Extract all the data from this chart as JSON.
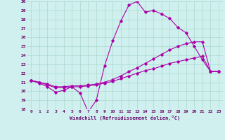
{
  "xlabel": "Windchill (Refroidissement éolien,°C)",
  "xlim": [
    -0.5,
    23.5
  ],
  "ylim": [
    18,
    30
  ],
  "yticks": [
    18,
    19,
    20,
    21,
    22,
    23,
    24,
    25,
    26,
    27,
    28,
    29,
    30
  ],
  "xticks": [
    0,
    1,
    2,
    3,
    4,
    5,
    6,
    7,
    8,
    9,
    10,
    11,
    12,
    13,
    14,
    15,
    16,
    17,
    18,
    19,
    20,
    21,
    22,
    23
  ],
  "bg_color": "#cff0ee",
  "grid_color": "#aad8cc",
  "line_color": "#aa00aa",
  "line1_x": [
    0,
    1,
    2,
    3,
    4,
    5,
    6,
    7,
    8,
    9,
    10,
    11,
    12,
    13,
    14,
    15,
    16,
    17,
    18,
    19,
    20,
    21,
    22,
    23
  ],
  "line1_y": [
    21.2,
    20.9,
    20.5,
    19.9,
    20.1,
    20.5,
    19.8,
    17.7,
    19.0,
    22.8,
    25.6,
    27.8,
    29.6,
    30.0,
    28.8,
    29.0,
    28.6,
    28.1,
    27.1,
    26.5,
    25.0,
    23.5,
    22.2,
    22.2
  ],
  "line2_x": [
    0,
    1,
    2,
    3,
    4,
    5,
    6,
    7,
    8,
    9,
    10,
    11,
    12,
    13,
    14,
    15,
    16,
    17,
    18,
    19,
    20,
    21,
    22,
    23
  ],
  "line2_y": [
    21.2,
    21.0,
    20.8,
    20.5,
    20.5,
    20.6,
    20.6,
    20.7,
    20.8,
    21.0,
    21.3,
    21.7,
    22.2,
    22.6,
    23.1,
    23.6,
    24.1,
    24.6,
    25.0,
    25.3,
    25.5,
    25.5,
    22.2,
    22.2
  ],
  "line3_x": [
    0,
    1,
    2,
    3,
    4,
    5,
    6,
    7,
    8,
    9,
    10,
    11,
    12,
    13,
    14,
    15,
    16,
    17,
    18,
    19,
    20,
    21,
    22,
    23
  ],
  "line3_y": [
    21.2,
    21.0,
    20.7,
    20.4,
    20.4,
    20.5,
    20.5,
    20.6,
    20.7,
    20.9,
    21.1,
    21.4,
    21.7,
    22.0,
    22.3,
    22.5,
    22.8,
    23.1,
    23.3,
    23.5,
    23.7,
    23.9,
    22.2,
    22.2
  ]
}
